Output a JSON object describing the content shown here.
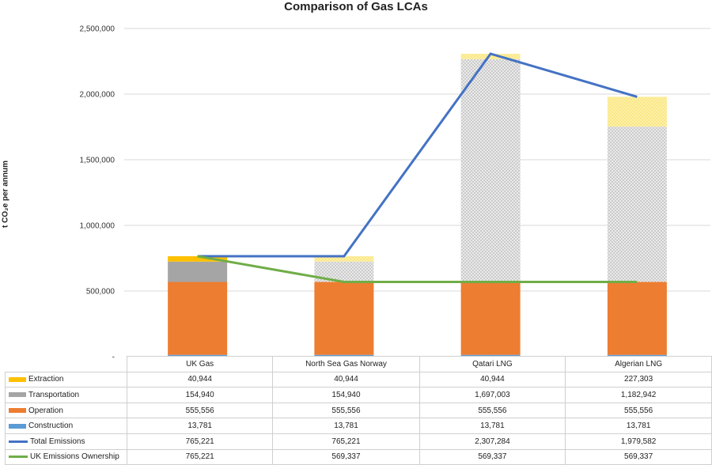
{
  "chart_data": {
    "type": "bar",
    "title": "Comparison of Gas LCAs",
    "ylabel": "t CO₂e per annum",
    "ylim": [
      0,
      2500000
    ],
    "yticks": [
      "-",
      "500,000",
      "1,000,000",
      "1,500,000",
      "2,000,000",
      "2,500,000"
    ],
    "ytick_values": [
      0,
      500000,
      1000000,
      1500000,
      2000000,
      2500000
    ],
    "grid": true,
    "legend": "table",
    "stacked": true,
    "categories": [
      "UK Gas",
      "North Sea Gas Norway",
      "Qatari LNG",
      "Algerian LNG"
    ],
    "series": [
      {
        "name": "Extraction",
        "kind": "bar",
        "color": "#FFC000",
        "faded": [
          false,
          true,
          true,
          true
        ],
        "values": [
          40944,
          40944,
          40944,
          227303
        ],
        "labels": [
          "40,944",
          "40,944",
          "40,944",
          "227,303"
        ]
      },
      {
        "name": "Transportation",
        "kind": "bar",
        "color": "#A5A5A5",
        "faded": [
          false,
          true,
          true,
          true
        ],
        "values": [
          154940,
          154940,
          1697003,
          1182942
        ],
        "labels": [
          "154,940",
          "154,940",
          "1,697,003",
          "1,182,942"
        ]
      },
      {
        "name": "Operation",
        "kind": "bar",
        "color": "#ED7D31",
        "faded": [
          false,
          false,
          false,
          false
        ],
        "values": [
          555556,
          555556,
          555556,
          555556
        ],
        "labels": [
          "555,556",
          "555,556",
          "555,556",
          "555,556"
        ]
      },
      {
        "name": "Construction",
        "kind": "bar",
        "color": "#5B9BD5",
        "faded": [
          false,
          false,
          false,
          false
        ],
        "values": [
          13781,
          13781,
          13781,
          13781
        ],
        "labels": [
          "13,781",
          "13,781",
          "13,781",
          "13,781"
        ]
      },
      {
        "name": "Total Emissions",
        "kind": "line",
        "color": "#4472C4",
        "values": [
          765221,
          765221,
          2307284,
          1979582
        ],
        "labels": [
          "765,221",
          "765,221",
          "2,307,284",
          "1,979,582"
        ]
      },
      {
        "name": "UK Emissions Ownership",
        "kind": "line",
        "color": "#70AD47",
        "values": [
          765221,
          569337,
          569337,
          569337
        ],
        "labels": [
          "765,221",
          "569,337",
          "569,337",
          "569,337"
        ]
      }
    ]
  }
}
